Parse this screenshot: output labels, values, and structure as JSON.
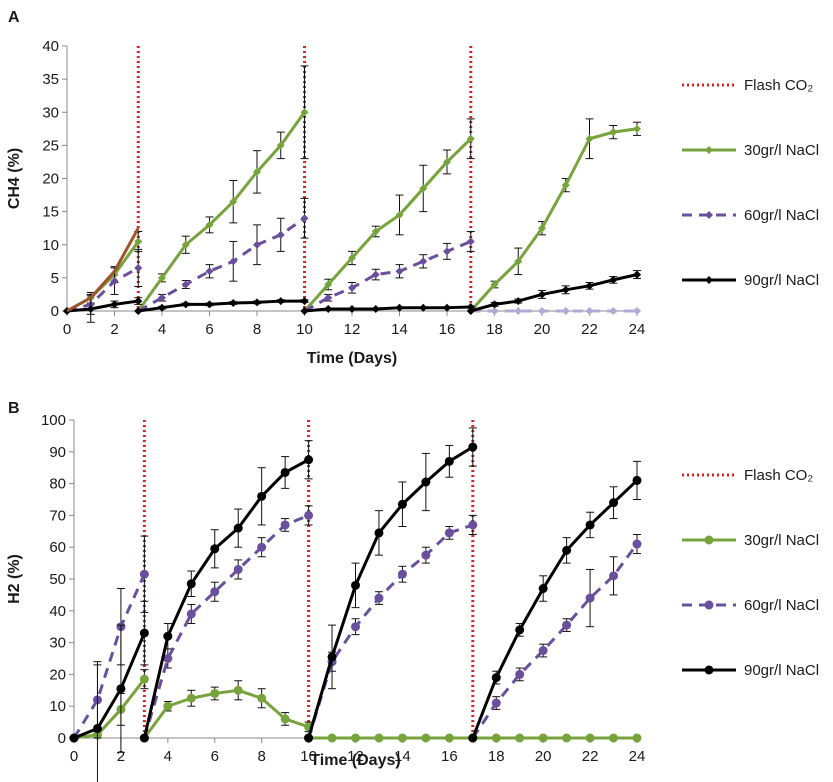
{
  "colors": {
    "flash": "#e02020",
    "s30": "#77a33c",
    "s60": "#6a4f9c",
    "s90": "#000000",
    "s60_light": "#b3a7d3",
    "s30_brown": "#a0522d"
  },
  "chart_data": [
    {
      "type": "line",
      "panel_label": "A",
      "ylabel": "CH4 (%)",
      "xlabel": "Time (Days)",
      "xlim": [
        0,
        24
      ],
      "ylim": [
        0,
        40
      ],
      "xticks": [
        "0",
        "2",
        "4",
        "6",
        "8",
        "10",
        "12",
        "14",
        "16",
        "18",
        "20",
        "22",
        "24"
      ],
      "yticks": [
        "0",
        "5",
        "10",
        "15",
        "20",
        "25",
        "30",
        "35",
        "40"
      ],
      "flash_days": [
        3,
        10,
        17
      ],
      "legend": [
        "Flash CO₂",
        "30gr/l NaCl",
        "60gr/l NaCl",
        "90gr/l NaCl"
      ],
      "series": [
        {
          "name": "30gr/l NaCl",
          "color": "s30",
          "dash": false,
          "marker": "diamond",
          "segments": [
            {
              "x": [
                0,
                1,
                2,
                3
              ],
              "y": [
                0,
                2,
                5.5,
                10.5
              ],
              "err": [
                0,
                0.8,
                1.2,
                1.5
              ]
            },
            {
              "x": [
                3,
                4,
                5,
                6,
                7,
                8,
                9,
                10
              ],
              "y": [
                0,
                5,
                10,
                13,
                16.5,
                21,
                25,
                30
              ],
              "err": [
                0,
                0.6,
                1.3,
                1.2,
                3.2,
                3.2,
                2,
                7
              ]
            },
            {
              "x": [
                10,
                11,
                12,
                13,
                14,
                15,
                16,
                17
              ],
              "y": [
                0,
                4,
                8,
                12,
                14.5,
                18.5,
                22.5,
                26
              ],
              "err": [
                0,
                0.8,
                1,
                0.8,
                3,
                3.5,
                1.8,
                3
              ]
            },
            {
              "x": [
                17,
                18,
                19,
                20,
                21,
                22,
                23,
                24
              ],
              "y": [
                0,
                4,
                7.5,
                12.5,
                19,
                26,
                27,
                27.5
              ],
              "err": [
                0,
                0.5,
                2,
                1,
                1,
                3,
                1,
                1
              ]
            }
          ]
        },
        {
          "name": "60gr/l NaCl",
          "color": "s60",
          "dash": true,
          "marker": "diamond",
          "segments": [
            {
              "x": [
                0,
                1,
                2,
                3
              ],
              "y": [
                0,
                1,
                4.5,
                6.5
              ],
              "err": [
                0,
                1.5,
                2,
                2.8
              ]
            },
            {
              "x": [
                3,
                4,
                5,
                6,
                7,
                8,
                9,
                10
              ],
              "y": [
                0,
                2,
                4,
                6,
                7.5,
                10,
                11.5,
                14
              ],
              "err": [
                0,
                0.5,
                0.6,
                1,
                3,
                3,
                2.5,
                3
              ]
            },
            {
              "x": [
                10,
                11,
                12,
                13,
                14,
                15,
                16,
                17
              ],
              "y": [
                0,
                2,
                3.5,
                5.5,
                6,
                7.5,
                9,
                10.5
              ],
              "err": [
                0,
                0.5,
                0.8,
                0.8,
                1,
                1,
                1.2,
                1.5
              ]
            },
            {
              "x": [
                17,
                18,
                19,
                20,
                21,
                22,
                23,
                24
              ],
              "y": [
                0,
                0,
                0,
                0,
                0,
                0,
                0,
                0
              ],
              "err": [
                0,
                0,
                0,
                0,
                0,
                0,
                0,
                0
              ],
              "color": "s60_light"
            }
          ]
        },
        {
          "name": "90gr/l NaCl",
          "color": "s90",
          "dash": false,
          "marker": "diamond",
          "segments": [
            {
              "x": [
                0,
                1,
                2,
                3
              ],
              "y": [
                0,
                0.3,
                1,
                1.5
              ],
              "err": [
                0,
                2,
                0.5,
                0.5
              ]
            },
            {
              "x": [
                3,
                4,
                5,
                6,
                7,
                8,
                9,
                10
              ],
              "y": [
                0,
                0.5,
                1,
                1,
                1.2,
                1.3,
                1.5,
                1.5
              ],
              "err": [
                0,
                0.2,
                0.2,
                0.2,
                0.2,
                0.2,
                0.2,
                0.2
              ]
            },
            {
              "x": [
                10,
                11,
                12,
                13,
                14,
                15,
                16,
                17
              ],
              "y": [
                0,
                0.3,
                0.3,
                0.3,
                0.5,
                0.5,
                0.5,
                0.6
              ],
              "err": [
                0,
                0.1,
                0.1,
                0.1,
                0.1,
                0.1,
                0.1,
                0.1
              ]
            },
            {
              "x": [
                17,
                18,
                19,
                20,
                21,
                22,
                23,
                24
              ],
              "y": [
                0,
                1,
                1.5,
                2.5,
                3.2,
                3.8,
                4.7,
                5.5
              ],
              "err": [
                0,
                0.3,
                0.3,
                0.6,
                0.6,
                0.5,
                0.5,
                0.6
              ]
            }
          ]
        },
        {
          "name": "",
          "color": "s30_brown",
          "dash": false,
          "marker": "none",
          "segments": [
            {
              "x": [
                0,
                1,
                2,
                3
              ],
              "y": [
                0,
                2,
                6,
                12.5
              ],
              "err": [
                0,
                0,
                0,
                0
              ]
            }
          ]
        }
      ]
    },
    {
      "type": "line",
      "panel_label": "B",
      "ylabel": "H2 (%)",
      "xlabel": "Time (Days)",
      "xlim": [
        0,
        24
      ],
      "ylim": [
        0,
        100
      ],
      "xticks": [
        "0",
        "2",
        "4",
        "6",
        "8",
        "10",
        "12",
        "14",
        "16",
        "18",
        "20",
        "22",
        "24"
      ],
      "yticks": [
        "0",
        "10",
        "20",
        "30",
        "40",
        "50",
        "60",
        "70",
        "80",
        "90",
        "100"
      ],
      "flash_days": [
        3,
        10,
        17
      ],
      "legend": [
        "Flash CO₂",
        "30gr/l NaCl",
        "60gr/l NaCl",
        "90gr/l NaCl"
      ],
      "series": [
        {
          "name": "30gr/l NaCl",
          "color": "s30",
          "dash": false,
          "marker": "circle",
          "segments": [
            {
              "x": [
                0,
                1,
                2,
                3
              ],
              "y": [
                0,
                1,
                9,
                18.5
              ],
              "err": [
                0,
                1,
                5,
                3
              ]
            },
            {
              "x": [
                3,
                4,
                5,
                6,
                7,
                8,
                9,
                10
              ],
              "y": [
                0,
                10,
                12.5,
                14,
                15,
                12.5,
                6,
                3.5
              ],
              "err": [
                0,
                1.5,
                2.5,
                2,
                3,
                3,
                2,
                1.5
              ]
            },
            {
              "x": [
                10,
                11,
                12,
                13,
                14,
                15,
                16,
                17
              ],
              "y": [
                0,
                0,
                0,
                0,
                0,
                0,
                0,
                0
              ],
              "err": [
                0,
                0,
                0,
                0,
                0,
                0,
                0,
                0
              ]
            },
            {
              "x": [
                17,
                18,
                19,
                20,
                21,
                22,
                23,
                24
              ],
              "y": [
                0,
                0,
                0,
                0,
                0,
                0,
                0,
                0
              ],
              "err": [
                0,
                0,
                0,
                0,
                0,
                0,
                0,
                0
              ]
            }
          ]
        },
        {
          "name": "60gr/l NaCl",
          "color": "s60",
          "dash": true,
          "marker": "circle",
          "segments": [
            {
              "x": [
                0,
                1,
                2,
                3
              ],
              "y": [
                0,
                12,
                35,
                51.5
              ],
              "err": [
                0,
                12,
                12,
                12
              ]
            },
            {
              "x": [
                3,
                4,
                5,
                6,
                7,
                8,
                9,
                10
              ],
              "y": [
                0,
                25,
                39,
                46,
                53,
                60,
                67,
                70
              ],
              "err": [
                0,
                3,
                3,
                3,
                3,
                3,
                2,
                3
              ]
            },
            {
              "x": [
                10,
                11,
                12,
                13,
                14,
                15,
                16,
                17
              ],
              "y": [
                0,
                24,
                35,
                44,
                51.5,
                57.5,
                64.5,
                67
              ],
              "err": [
                0,
                3,
                2.5,
                2,
                2.5,
                2.5,
                2,
                3
              ]
            },
            {
              "x": [
                17,
                18,
                19,
                20,
                21,
                22,
                23,
                24
              ],
              "y": [
                0,
                11,
                20,
                27.5,
                35.5,
                44,
                51,
                61
              ],
              "err": [
                0,
                2,
                2,
                2,
                2,
                9,
                6,
                3
              ]
            }
          ]
        },
        {
          "name": "90gr/l NaCl",
          "color": "s90",
          "dash": false,
          "marker": "circle",
          "segments": [
            {
              "x": [
                0,
                1,
                2,
                3
              ],
              "y": [
                0,
                3,
                15.5,
                33
              ],
              "err": [
                0,
                20,
                20,
                10
              ]
            },
            {
              "x": [
                3,
                4,
                5,
                6,
                7,
                8,
                9,
                10
              ],
              "y": [
                0,
                32,
                48.5,
                59.5,
                66,
                76,
                83.5,
                87.5
              ],
              "err": [
                0,
                4,
                4,
                6,
                6,
                9,
                5,
                6
              ]
            },
            {
              "x": [
                10,
                11,
                12,
                13,
                14,
                15,
                16,
                17
              ],
              "y": [
                0,
                25.5,
                48,
                64.5,
                73.5,
                80.5,
                87,
                91.5
              ],
              "err": [
                0,
                10,
                7,
                7,
                7,
                9,
                5,
                6
              ]
            },
            {
              "x": [
                17,
                18,
                19,
                20,
                21,
                22,
                23,
                24
              ],
              "y": [
                0,
                19,
                34,
                47,
                59,
                67,
                74,
                81
              ],
              "err": [
                0,
                2,
                2,
                4,
                4,
                4,
                5,
                6
              ]
            }
          ]
        }
      ]
    }
  ]
}
